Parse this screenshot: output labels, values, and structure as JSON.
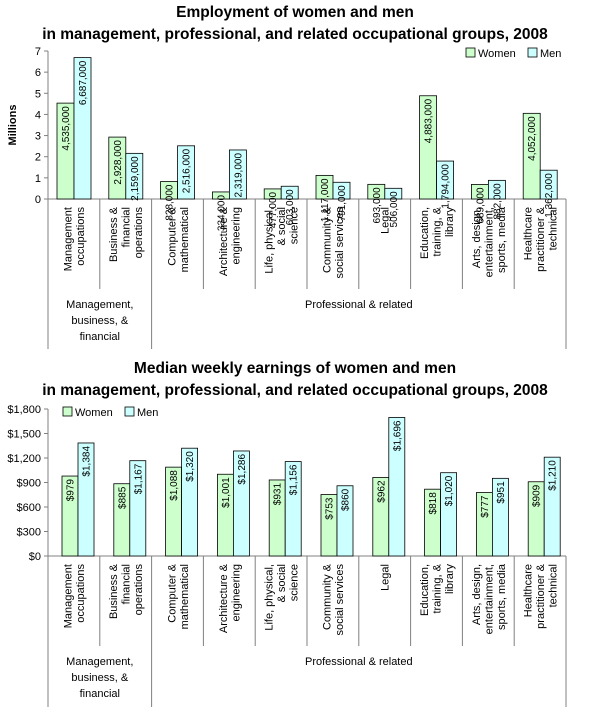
{
  "colors": {
    "women": "#ccffcc",
    "men": "#ccffff",
    "stroke": "#000000",
    "axis": "#808080"
  },
  "legend": {
    "women": "Women",
    "men": "Men"
  },
  "chart_data": [
    {
      "type": "bar",
      "title_lines": [
        "Employment of women and men",
        "in management, professional, and related occupational groups, 2008"
      ],
      "ylabel": "Millions",
      "yticks": [
        "0",
        "1",
        "2",
        "3",
        "4",
        "5",
        "6",
        "7"
      ],
      "ylim": [
        0,
        7
      ],
      "legend_position": "top-right",
      "grid": false,
      "categories": [
        [
          "Management",
          "occupations"
        ],
        [
          "Business &",
          "financial",
          "operations"
        ],
        [
          "Computer &",
          "mathematical"
        ],
        [
          "Architecture &",
          "engineering"
        ],
        [
          "Life, physical,",
          "& social",
          "science"
        ],
        [
          "Community &",
          "social services"
        ],
        [
          "Legal"
        ],
        [
          "Education,",
          "training, &",
          "library"
        ],
        [
          "Arts, design,",
          "entertainment,",
          "sports, media"
        ],
        [
          "Healthcare",
          "practitioner &",
          "technical"
        ]
      ],
      "groups": [
        {
          "lines": [
            "Management,",
            "business, &",
            "financial"
          ],
          "from": 0,
          "to": 1
        },
        {
          "lines": [
            "Professional & related"
          ],
          "from": 2,
          "to": 9
        }
      ],
      "series": [
        {
          "name": "Women",
          "values": [
            4.535,
            2.928,
            0.828,
            0.334,
            0.477,
            1.117,
            0.693,
            4.883,
            0.689,
            4.052
          ],
          "labels": [
            "4,535,000",
            "2,928,000",
            "828,000",
            "334,000",
            "477,000",
            "1,117,000",
            "693,000",
            "4,883,000",
            "689,000",
            "4,052,000"
          ]
        },
        {
          "name": "Men",
          "values": [
            6.687,
            2.159,
            2.516,
            2.319,
            0.603,
            0.791,
            0.506,
            1.794,
            0.882,
            1.362
          ],
          "labels": [
            "6,687,000",
            "2,159,000",
            "2,516,000",
            "2,319,000",
            "603,000",
            "791,000",
            "506,000",
            "1,794,000",
            "882,000",
            "1,362,000"
          ]
        }
      ]
    },
    {
      "type": "bar",
      "title_lines": [
        "Median weekly earnings of women and men",
        "in management, professional, and related occupational groups, 2008"
      ],
      "ylabel": "",
      "yticks": [
        "$0",
        "$300",
        "$600",
        "$900",
        "$1,200",
        "$1,500",
        "$1,800"
      ],
      "ylim": [
        0,
        1800
      ],
      "legend_position": "top-left",
      "grid": false,
      "categories": [
        [
          "Management",
          "occupations"
        ],
        [
          "Business &",
          "financial",
          "operations"
        ],
        [
          "Computer &",
          "mathematical"
        ],
        [
          "Architecture &",
          "engineering"
        ],
        [
          "Life, physical,",
          "& social",
          "science"
        ],
        [
          "Community &",
          "social services"
        ],
        [
          "Legal"
        ],
        [
          "Education,",
          "training, &",
          "library"
        ],
        [
          "Arts, design,",
          "entertainment,",
          "sports, media"
        ],
        [
          "Healthcare",
          "practitioner &",
          "technical"
        ]
      ],
      "groups": [
        {
          "lines": [
            "Management,",
            "business, &",
            "financial"
          ],
          "from": 0,
          "to": 1
        },
        {
          "lines": [
            "Professional & related"
          ],
          "from": 2,
          "to": 9
        }
      ],
      "series": [
        {
          "name": "Women",
          "values": [
            979,
            885,
            1088,
            1001,
            931,
            753,
            962,
            818,
            777,
            909
          ],
          "labels": [
            "$979",
            "$885",
            "$1,088",
            "$1,001",
            "$931",
            "$753",
            "$962",
            "$818",
            "$777",
            "$909"
          ]
        },
        {
          "name": "Men",
          "values": [
            1384,
            1167,
            1320,
            1286,
            1156,
            860,
            1696,
            1020,
            951,
            1210
          ],
          "labels": [
            "$1,384",
            "$1,167",
            "$1,320",
            "$1,286",
            "$1,156",
            "$860",
            "$1,696",
            "$1,020",
            "$951",
            "$1,210"
          ]
        }
      ]
    }
  ]
}
